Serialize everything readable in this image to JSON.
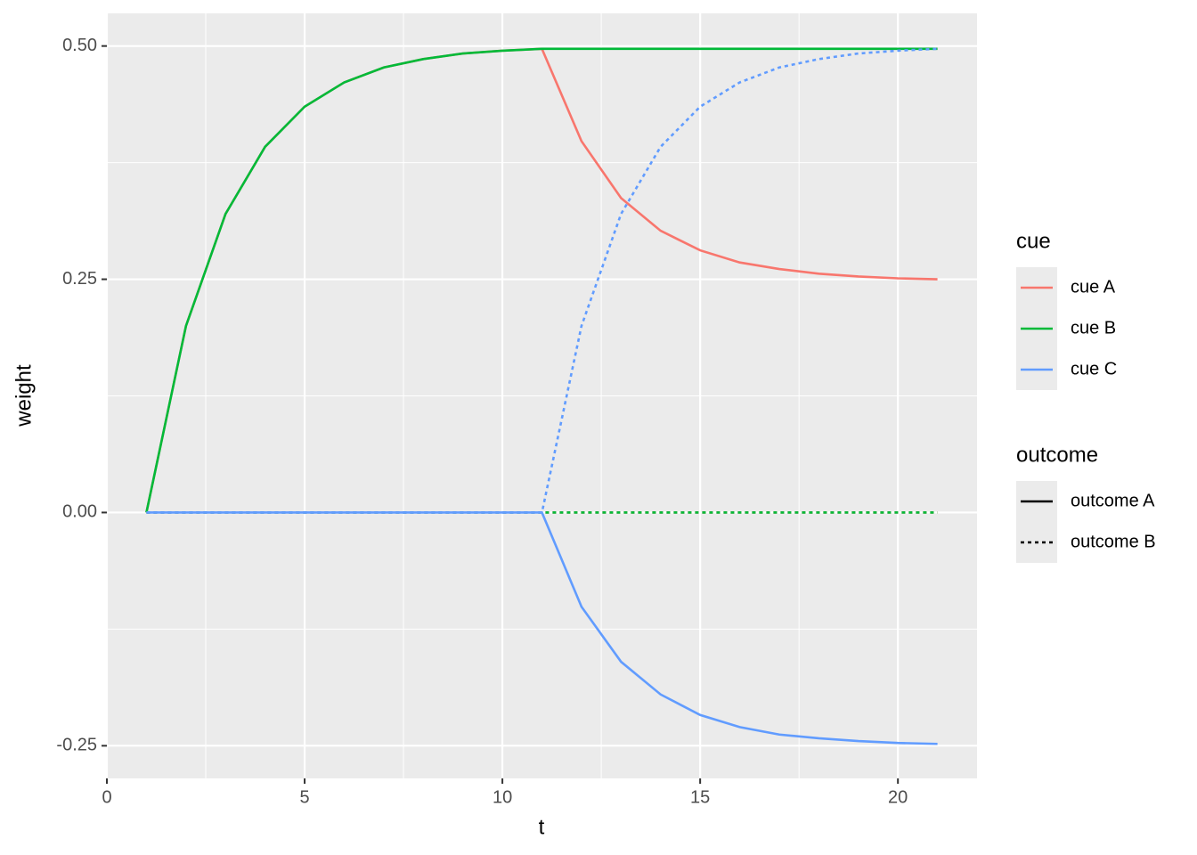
{
  "chart_data": {
    "type": "line",
    "xlabel": "t",
    "ylabel": "weight",
    "x": [
      1,
      2,
      3,
      4,
      5,
      6,
      7,
      8,
      9,
      10,
      11,
      12,
      13,
      14,
      15,
      16,
      17,
      18,
      19,
      20,
      21
    ],
    "series": [
      {
        "cue": "cue A",
        "outcome": "outcome A",
        "values": [
          0,
          0.2,
          0.32,
          0.392,
          0.435,
          0.461,
          0.477,
          0.486,
          0.492,
          0.495,
          0.497,
          0.398,
          0.337,
          0.302,
          0.281,
          0.268,
          0.261,
          0.256,
          0.253,
          0.251,
          0.25
        ]
      },
      {
        "cue": "cue A",
        "outcome": "outcome B",
        "values": [
          0,
          0,
          0,
          0,
          0,
          0,
          0,
          0,
          0,
          0,
          0,
          0,
          0,
          0,
          0,
          0,
          0,
          0,
          0,
          0,
          0
        ]
      },
      {
        "cue": "cue B",
        "outcome": "outcome A",
        "values": [
          0,
          0.2,
          0.32,
          0.392,
          0.435,
          0.461,
          0.477,
          0.486,
          0.492,
          0.495,
          0.497,
          0.497,
          0.497,
          0.497,
          0.497,
          0.497,
          0.497,
          0.497,
          0.497,
          0.497,
          0.497
        ]
      },
      {
        "cue": "cue B",
        "outcome": "outcome B",
        "values": [
          0,
          0,
          0,
          0,
          0,
          0,
          0,
          0,
          0,
          0,
          0,
          0,
          0,
          0,
          0,
          0,
          0,
          0,
          0,
          0,
          0
        ]
      },
      {
        "cue": "cue C",
        "outcome": "outcome A",
        "values": [
          0,
          0,
          0,
          0,
          0,
          0,
          0,
          0,
          0,
          0,
          0,
          -0.101,
          -0.16,
          -0.195,
          -0.217,
          -0.23,
          -0.238,
          -0.242,
          -0.245,
          -0.247,
          -0.248
        ]
      },
      {
        "cue": "cue C",
        "outcome": "outcome B",
        "values": [
          0,
          0,
          0,
          0,
          0,
          0,
          0,
          0,
          0,
          0,
          0,
          0.2,
          0.32,
          0.392,
          0.435,
          0.461,
          0.477,
          0.486,
          0.492,
          0.495,
          0.497
        ]
      }
    ],
    "legends": {
      "cue": {
        "title": "cue",
        "items": [
          {
            "label": "cue A",
            "color": "#f8766d"
          },
          {
            "label": "cue B",
            "color": "#00ba38"
          },
          {
            "label": "cue C",
            "color": "#619cff"
          }
        ]
      },
      "outcome": {
        "title": "outcome",
        "items": [
          {
            "label": "outcome A",
            "linetype": "solid"
          },
          {
            "label": "outcome B",
            "linetype": "dashed"
          }
        ]
      }
    },
    "xlim": [
      0,
      22
    ],
    "xticks": [
      0,
      5,
      10,
      15,
      20
    ],
    "minor_xticks": [
      2.5,
      7.5,
      12.5,
      17.5
    ],
    "ylim": [
      -0.285,
      0.535
    ],
    "yticks": [
      {
        "value": -0.25,
        "label": "-0.25"
      },
      {
        "value": 0,
        "label": "0.00"
      },
      {
        "value": 0.25,
        "label": "0.25"
      },
      {
        "value": 0.5,
        "label": "0.50"
      }
    ],
    "minor_yticks": [
      -0.125,
      0.125,
      0.375
    ],
    "grid": true
  }
}
